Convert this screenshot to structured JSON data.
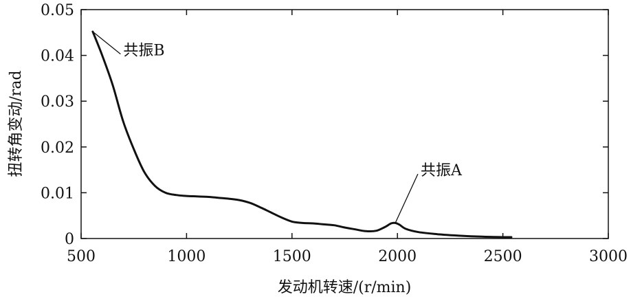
{
  "chart_data": {
    "type": "line",
    "title": "",
    "xlabel": "发动机转速/(r/min)",
    "ylabel": "扭转角变动/rad",
    "xlim": [
      500,
      3000
    ],
    "ylim": [
      0,
      0.05
    ],
    "x_ticks": [
      500,
      1000,
      1500,
      2000,
      2500,
      3000
    ],
    "y_ticks": [
      0,
      0.01,
      0.02,
      0.03,
      0.04,
      0.05
    ],
    "x_tick_labels": [
      "500",
      "1000",
      "1500",
      "2000",
      "2500",
      "3000"
    ],
    "y_tick_labels": [
      "0",
      "0.01",
      "0.02",
      "0.03",
      "0.04",
      "0.05"
    ],
    "grid": false,
    "line_color": "#111111",
    "series": [
      {
        "x": [
          555,
          600,
          650,
          700,
          750,
          800,
          850,
          900,
          950,
          1000,
          1050,
          1100,
          1150,
          1200,
          1250,
          1300,
          1350,
          1400,
          1450,
          1500,
          1550,
          1600,
          1650,
          1700,
          1750,
          1800,
          1850,
          1900,
          1940,
          1970,
          1990,
          2010,
          2040,
          2100,
          2200,
          2300,
          2400,
          2500,
          2540
        ],
        "y": [
          0.0452,
          0.04,
          0.0335,
          0.0255,
          0.0195,
          0.0145,
          0.0115,
          0.01,
          0.0095,
          0.0093,
          0.0092,
          0.0091,
          0.0089,
          0.0087,
          0.0084,
          0.0078,
          0.0068,
          0.0057,
          0.0046,
          0.0037,
          0.0034,
          0.0033,
          0.0031,
          0.0029,
          0.0024,
          0.002,
          0.0016,
          0.0017,
          0.0025,
          0.0033,
          0.0034,
          0.003,
          0.0021,
          0.0014,
          0.0009,
          0.0006,
          0.0004,
          0.0003,
          0.0003
        ]
      }
    ],
    "annotations": [
      {
        "text": "共振B",
        "x": 555,
        "y": 0.0452,
        "label_x": 700,
        "label_y": 0.0412
      },
      {
        "text": "共振A",
        "x": 1990,
        "y": 0.0034,
        "label_x": 2110,
        "label_y": 0.015
      }
    ]
  }
}
